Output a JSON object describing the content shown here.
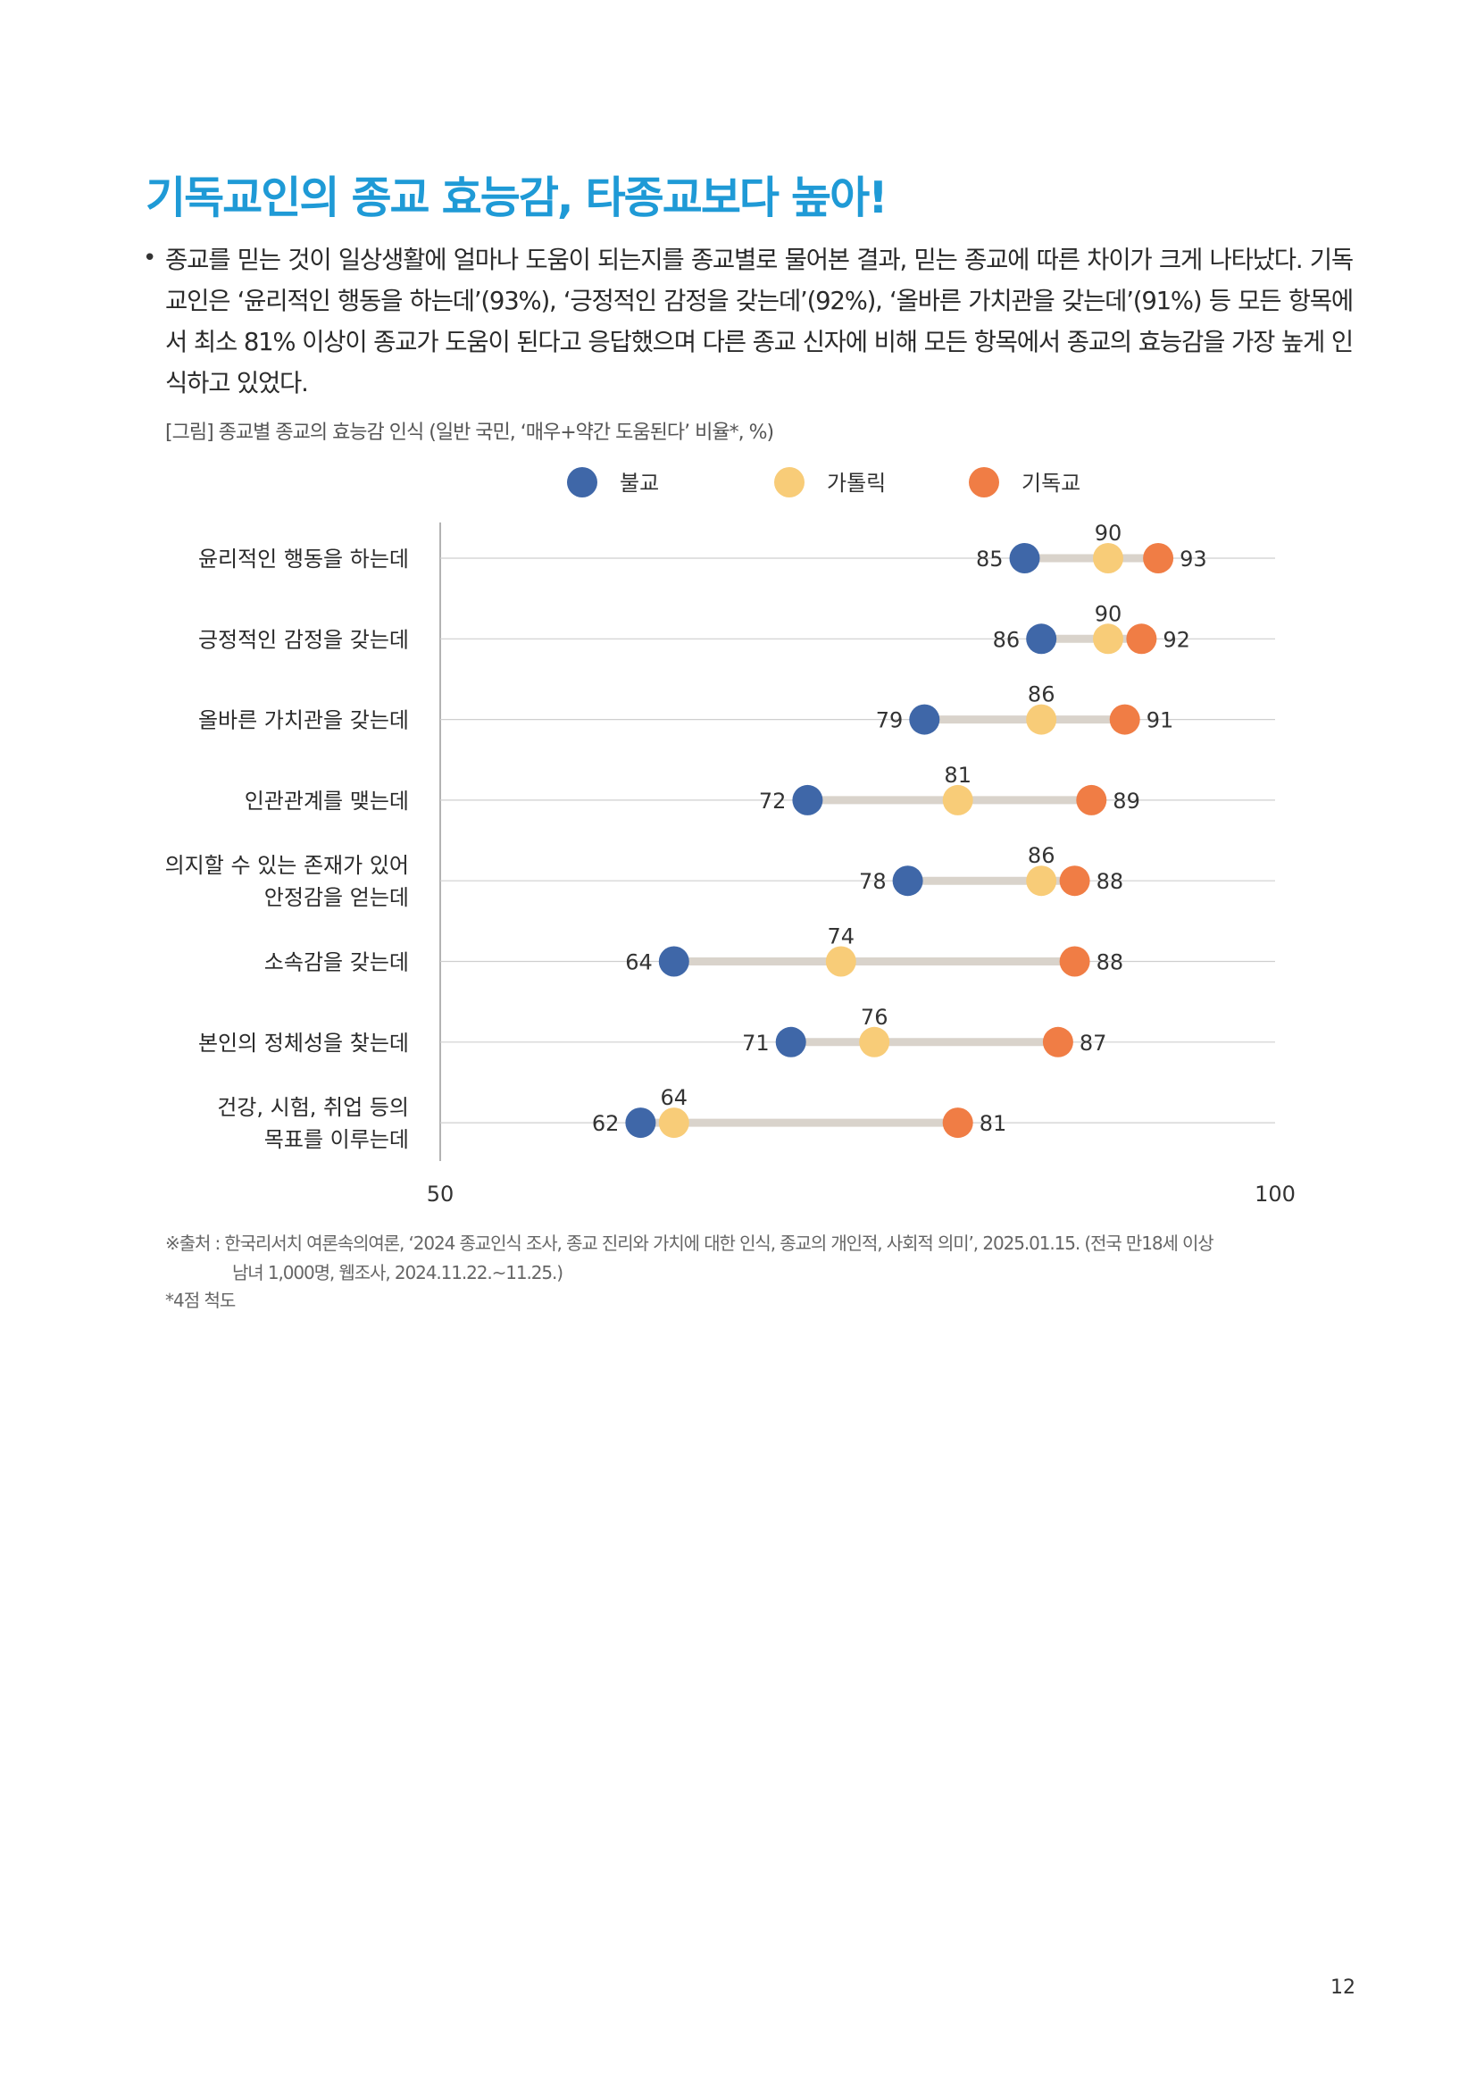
{
  "headline": "기독교인의 종교 효능감, 타종교보다 높아!",
  "bullet": {
    "marker": "•",
    "text": "종교를 믿는 것이 일상생활에 얼마나 도움이 되는지를 종교별로 물어본 결과, 믿는 종교에 따른 차이가 크게 나타났다. 기독교인은 ‘윤리적인 행동을 하는데’(93%), ‘긍정적인 감정을 갖는데’(92%), ‘올바른 가치관을 갖는데’(91%) 등 모든 항목에서 최소 81% 이상이 종교가 도움이 된다고 응답했으며 다른 종교 신자에 비해 모든 항목에서 종교의 효능감을 가장 높게 인식하고 있었다."
  },
  "figure_caption": "[그림] 종교별 종교의 효능감 인식 (일반 국민, ‘매우+약간 도움된다’ 비율*, %)",
  "chart_data": {
    "type": "scatter",
    "title": "[그림] 종교별 종교의 효능감 인식 (일반 국민, ‘매우+약간 도움된다’ 비율*, %)",
    "categories": [
      [
        "윤리적인 행동을 하는데"
      ],
      [
        "긍정적인 감정을 갖는데"
      ],
      [
        "올바른 가치관을 갖는데"
      ],
      [
        "인관관계를 맺는데"
      ],
      [
        "의지할 수 있는 존재가 있어",
        "안정감을 얻는데"
      ],
      [
        "소속감을 갖는데"
      ],
      [
        "본인의 정체성을 찾는데"
      ],
      [
        "건강, 시험, 취업 등의",
        "목표를 이루는데"
      ]
    ],
    "series": [
      {
        "name": "불교",
        "color": "#3f67a8",
        "values": [
          85,
          86,
          79,
          72,
          78,
          64,
          71,
          62
        ]
      },
      {
        "name": "가톨릭",
        "color": "#f8cc78",
        "values": [
          90,
          90,
          86,
          81,
          86,
          74,
          76,
          64
        ]
      },
      {
        "name": "기독교",
        "color": "#f07d45",
        "values": [
          93,
          92,
          91,
          89,
          88,
          88,
          87,
          81
        ]
      }
    ],
    "xlim": [
      50,
      100
    ],
    "x_ticks": [
      "50",
      "100"
    ],
    "grid": true,
    "legend_position": "top",
    "range_bar_color": "#d9d3cb",
    "grid_color": "#cfcfcf",
    "axis_color": "#9a9a9a"
  },
  "source_note": {
    "line1": "※출처 : 한국리서치 여론속의여론, ‘2024 종교인식 조사, 종교 진리와 가치에 대한 인식, 종교의 개인적, 사회적 의미’, 2025.01.15. (전국 만18세 이상",
    "line2": "남녀 1,000명, 웹조사, 2024.11.22.~11.25.)"
  },
  "scale_note": "*4점 척도",
  "page_number": "12"
}
